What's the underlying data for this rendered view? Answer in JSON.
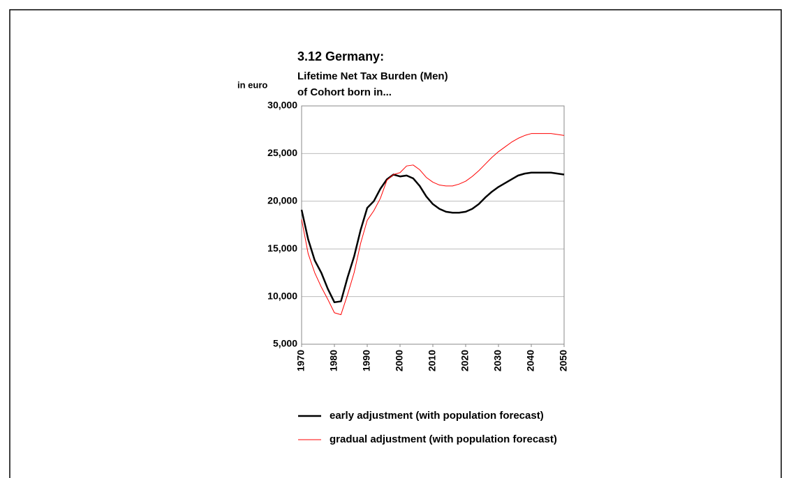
{
  "chart_data": {
    "type": "line",
    "title": "3.12 Germany:",
    "subtitle": [
      "Lifetime Net Tax Burden (Men)",
      "of Cohort born in..."
    ],
    "y_label": "in euro",
    "x": [
      1970,
      1972,
      1974,
      1976,
      1978,
      1980,
      1982,
      1984,
      1986,
      1988,
      1990,
      1992,
      1994,
      1996,
      1998,
      2000,
      2002,
      2004,
      2006,
      2008,
      2010,
      2012,
      2014,
      2016,
      2018,
      2020,
      2022,
      2024,
      2026,
      2028,
      2030,
      2032,
      2034,
      2036,
      2038,
      2040,
      2042,
      2044,
      2046,
      2048,
      2050
    ],
    "series": [
      {
        "name": "early adjustment (with population forecast)",
        "color": "#000000",
        "width": 2.5,
        "values": [
          19100,
          16000,
          13800,
          12500,
          10800,
          9400,
          9500,
          12000,
          14200,
          17000,
          19300,
          20000,
          21300,
          22300,
          22800,
          22600,
          22700,
          22400,
          21600,
          20500,
          19700,
          19200,
          18900,
          18800,
          18800,
          18900,
          19200,
          19700,
          20400,
          21000,
          21500,
          21900,
          22300,
          22700,
          22900,
          23000,
          23000,
          23000,
          23000,
          22900,
          22800
        ]
      },
      {
        "name": "gradual adjustment (with population forecast)",
        "color": "#ff0000",
        "width": 1,
        "values": [
          18100,
          14500,
          12500,
          11000,
          9700,
          8300,
          8100,
          10200,
          12500,
          15600,
          18000,
          19000,
          20300,
          22200,
          22800,
          23000,
          23700,
          23800,
          23300,
          22500,
          22000,
          21700,
          21600,
          21600,
          21800,
          22100,
          22600,
          23200,
          23900,
          24600,
          25200,
          25700,
          26200,
          26600,
          26900,
          27100,
          27100,
          27100,
          27100,
          27000,
          26900
        ]
      }
    ],
    "xlim": [
      1970,
      2050
    ],
    "xticks": [
      1970,
      1980,
      1990,
      2000,
      2010,
      2020,
      2030,
      2040,
      2050
    ],
    "ylim": [
      5000,
      30000
    ],
    "yticks": [
      {
        "value": 5000,
        "label": "5,000"
      },
      {
        "value": 10000,
        "label": "10,000"
      },
      {
        "value": 15000,
        "label": "15,000"
      },
      {
        "value": 20000,
        "label": "20,000"
      },
      {
        "value": 25000,
        "label": "25,000"
      },
      {
        "value": 30000,
        "label": "30,000"
      }
    ],
    "grid": true,
    "legend": "bottom"
  }
}
